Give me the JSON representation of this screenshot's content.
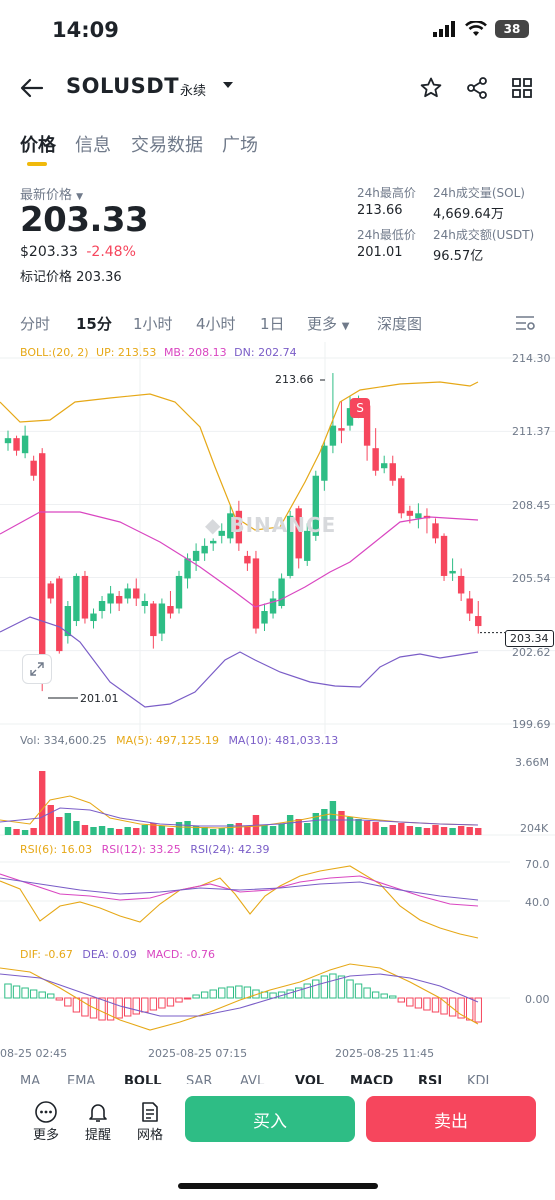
{
  "status_bar": {
    "time": "14:09",
    "battery": "38"
  },
  "header": {
    "symbol": "SOLUSDT",
    "contract_type": "永续"
  },
  "tabs": [
    "价格",
    "信息",
    "交易数据",
    "广场"
  ],
  "price": {
    "last_label": "最新价格",
    "last": "203.33",
    "usd": "$203.33",
    "change": "-2.48%",
    "mark_label": "标记价格",
    "mark": "203.36",
    "high_label": "24h最高价",
    "high": "213.66",
    "low_label": "24h最低价",
    "low": "201.01",
    "vol_label": "24h成交量(SOL)",
    "vol": "4,669.64万",
    "turnover_label": "24h成交额(USDT)",
    "turnover": "96.57亿"
  },
  "intervals": [
    "分时",
    "15分",
    "1小时",
    "4小时",
    "1日",
    "更多",
    "深度图"
  ],
  "main_chart": {
    "boll": "BOLL:(20, 2)",
    "up": "UP: 213.53",
    "mb": "MB: 208.13",
    "dn": "DN: 202.74",
    "axis": [
      "214.30",
      "211.37",
      "208.45",
      "205.54",
      "202.62",
      "199.69"
    ],
    "current": "203.34",
    "max_label": "213.66",
    "min_label": "201.01",
    "sell_marker": "S",
    "watermark": "BINANCE"
  },
  "vol_chart": {
    "vol": "Vol: 334,600.25",
    "ma5": "MA(5): 497,125.19",
    "ma10": "MA(10): 481,033.13",
    "axis_top": "3.66M",
    "axis_bottom": "204K"
  },
  "rsi_chart": {
    "rsi6": "RSI(6): 16.03",
    "rsi12": "RSI(12): 33.25",
    "rsi24": "RSI(24): 42.39",
    "axis_top": "70.0",
    "axis_bottom": "40.0"
  },
  "macd_chart": {
    "dif": "DIF: -0.67",
    "dea": "DEA: 0.09",
    "macd": "MACD: -0.76",
    "axis_zero": "0.00"
  },
  "time_axis": [
    "08-25 02:45",
    "2025-08-25 07:15",
    "2025-08-25 11:45"
  ],
  "indicator_tabs": [
    "MA",
    "EMA",
    "BOLL",
    "SAR",
    "AVL",
    "VOL",
    "MACD",
    "RSI",
    "KDJ"
  ],
  "bottom": {
    "more": "更多",
    "alert": "提醒",
    "grid": "网格",
    "buy": "买入",
    "sell": "卖出"
  },
  "colors": {
    "up": "#2ebd85",
    "down": "#f6465d",
    "accent": "#f0b90b",
    "mb": "#d946c1",
    "dn": "#7a5dc7"
  }
}
